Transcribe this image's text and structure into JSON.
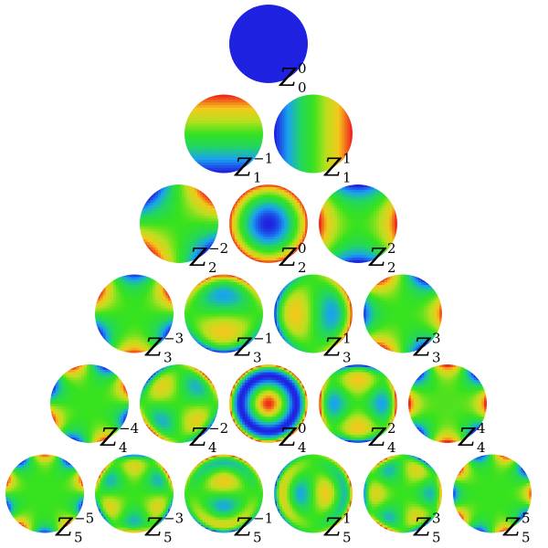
{
  "figure": {
    "cells": [
      {
        "n": 0,
        "m": 0,
        "label": "Z",
        "sup": "0",
        "sub": "0"
      },
      {
        "n": 1,
        "m": -1,
        "label": "Z",
        "sup": "−1",
        "sub": "1"
      },
      {
        "n": 1,
        "m": 1,
        "label": "Z",
        "sup": "1",
        "sub": "1"
      },
      {
        "n": 2,
        "m": -2,
        "label": "Z",
        "sup": "−2",
        "sub": "2"
      },
      {
        "n": 2,
        "m": 0,
        "label": "Z",
        "sup": "0",
        "sub": "2"
      },
      {
        "n": 2,
        "m": 2,
        "label": "Z",
        "sup": "2",
        "sub": "2"
      },
      {
        "n": 3,
        "m": -3,
        "label": "Z",
        "sup": "−3",
        "sub": "3"
      },
      {
        "n": 3,
        "m": -1,
        "label": "Z",
        "sup": "−1",
        "sub": "3"
      },
      {
        "n": 3,
        "m": 1,
        "label": "Z",
        "sup": "1",
        "sub": "3"
      },
      {
        "n": 3,
        "m": 3,
        "label": "Z",
        "sup": "3",
        "sub": "3"
      },
      {
        "n": 4,
        "m": -4,
        "label": "Z",
        "sup": "−4",
        "sub": "4"
      },
      {
        "n": 4,
        "m": -2,
        "label": "Z",
        "sup": "−2",
        "sub": "4"
      },
      {
        "n": 4,
        "m": 0,
        "label": "Z",
        "sup": "0",
        "sub": "4"
      },
      {
        "n": 4,
        "m": 2,
        "label": "Z",
        "sup": "2",
        "sub": "4"
      },
      {
        "n": 4,
        "m": 4,
        "label": "Z",
        "sup": "4",
        "sub": "4"
      },
      {
        "n": 5,
        "m": -5,
        "label": "Z",
        "sup": "−5",
        "sub": "5"
      },
      {
        "n": 5,
        "m": -3,
        "label": "Z",
        "sup": "−3",
        "sub": "5"
      },
      {
        "n": 5,
        "m": -1,
        "label": "Z",
        "sup": "−1",
        "sub": "5"
      },
      {
        "n": 5,
        "m": 1,
        "label": "Z",
        "sup": "1",
        "sub": "5"
      },
      {
        "n": 5,
        "m": 3,
        "label": "Z",
        "sup": "3",
        "sub": "5"
      },
      {
        "n": 5,
        "m": 5,
        "label": "Z",
        "sup": "5",
        "sub": "5"
      }
    ],
    "colormap": [
      "#1f22e0",
      "#1aa3f0",
      "#22d660",
      "#37e21f",
      "#b8e01e",
      "#f4c81c",
      "#ef2a1c"
    ]
  }
}
